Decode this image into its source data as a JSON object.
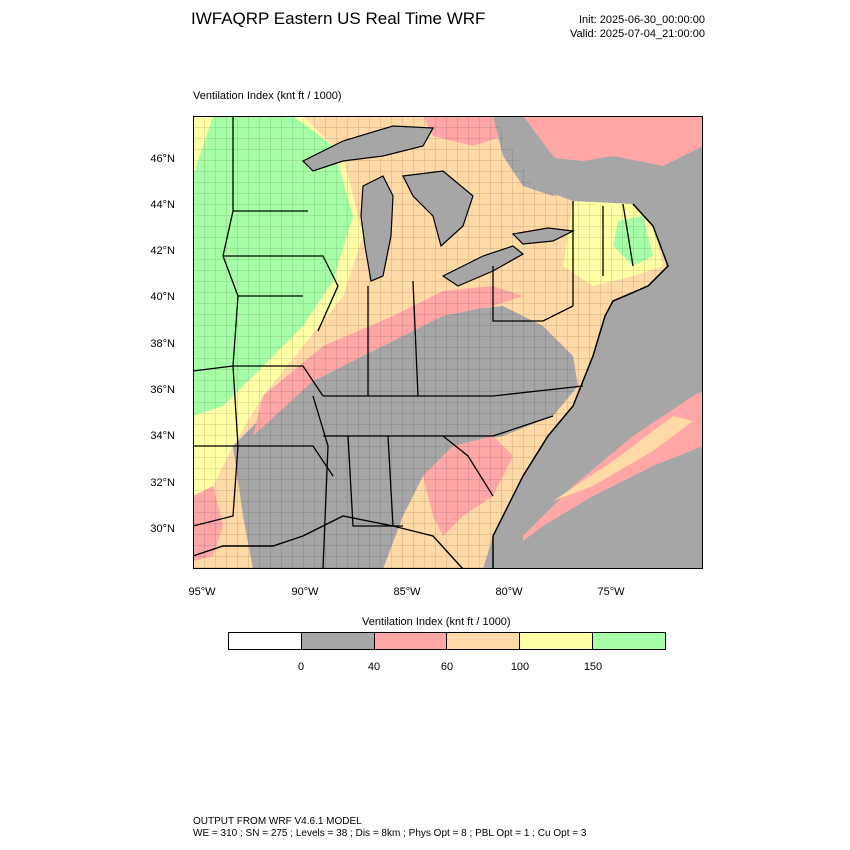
{
  "header": {
    "title": "IWFAQRP Eastern US Real Time WRF",
    "init": "Init: 2025-06-30_00:00:00",
    "valid": "Valid: 2025-07-04_21:00:00"
  },
  "field_label": "Ventilation Index   (knt ft / 1000)",
  "lat_labels": [
    "46°N",
    "44°N",
    "42°N",
    "40°N",
    "38°N",
    "36°N",
    "34°N",
    "32°N",
    "30°N"
  ],
  "lon_labels": [
    "95°W",
    "90°W",
    "85°W",
    "80°W",
    "75°W"
  ],
  "colorbar": {
    "title": "Ventilation Index  (knt ft / 1000)",
    "colors": [
      "#ffffff",
      "#a6a6a6",
      "#ffa6a6",
      "#ffd9a6",
      "#ffffa6",
      "#a6ffa6"
    ],
    "labels": [
      "0",
      "40",
      "60",
      "100",
      "150"
    ]
  },
  "footer": {
    "line1": "OUTPUT FROM WRF V4.6.1 MODEL",
    "line2": "WE = 310 ; SN = 275 ; Levels = 38 ; Dis = 8km ; Phys Opt = 8 ; PBL Opt = 1 ; Cu Opt = 3"
  }
}
